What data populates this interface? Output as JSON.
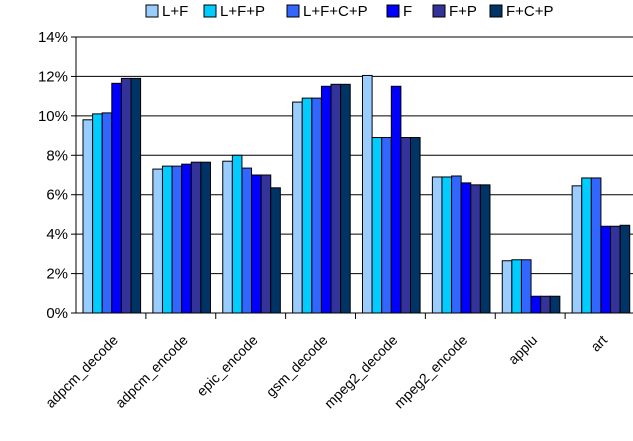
{
  "chart_data": {
    "type": "bar",
    "title": "",
    "xlabel": "",
    "ylabel": "",
    "ylim": [
      0,
      14
    ],
    "y_tick_step": 2,
    "y_tick_format": "percent",
    "grid": "horizontal",
    "legend_position": "top",
    "categories": [
      "adpcm_decode",
      "adpcm_encode",
      "epic_encode",
      "gsm_decode",
      "mpeg2_decode",
      "mpeg2_encode",
      "applu",
      "art"
    ],
    "series": [
      {
        "name": "L+F",
        "color": "#99ccff",
        "values": [
          9.8,
          7.3,
          7.7,
          10.7,
          12.05,
          6.9,
          2.65,
          6.45
        ]
      },
      {
        "name": "L+F+P",
        "color": "#00ccff",
        "values": [
          10.1,
          7.45,
          8.0,
          10.9,
          8.9,
          6.9,
          2.7,
          6.85
        ]
      },
      {
        "name": "L+F+C+P",
        "color": "#3366ff",
        "values": [
          10.15,
          7.45,
          7.35,
          10.9,
          8.9,
          6.95,
          2.7,
          6.85
        ]
      },
      {
        "name": "F",
        "color": "#0000ff",
        "values": [
          11.65,
          7.55,
          7.0,
          11.5,
          11.5,
          6.6,
          0.85,
          4.4
        ]
      },
      {
        "name": "F+P",
        "color": "#333399",
        "values": [
          11.9,
          7.65,
          7.0,
          11.6,
          8.9,
          6.5,
          0.85,
          4.4
        ]
      },
      {
        "name": "F+C+P",
        "color": "#003366",
        "values": [
          11.9,
          7.65,
          6.35,
          11.6,
          8.9,
          6.5,
          0.85,
          4.45
        ]
      }
    ]
  }
}
